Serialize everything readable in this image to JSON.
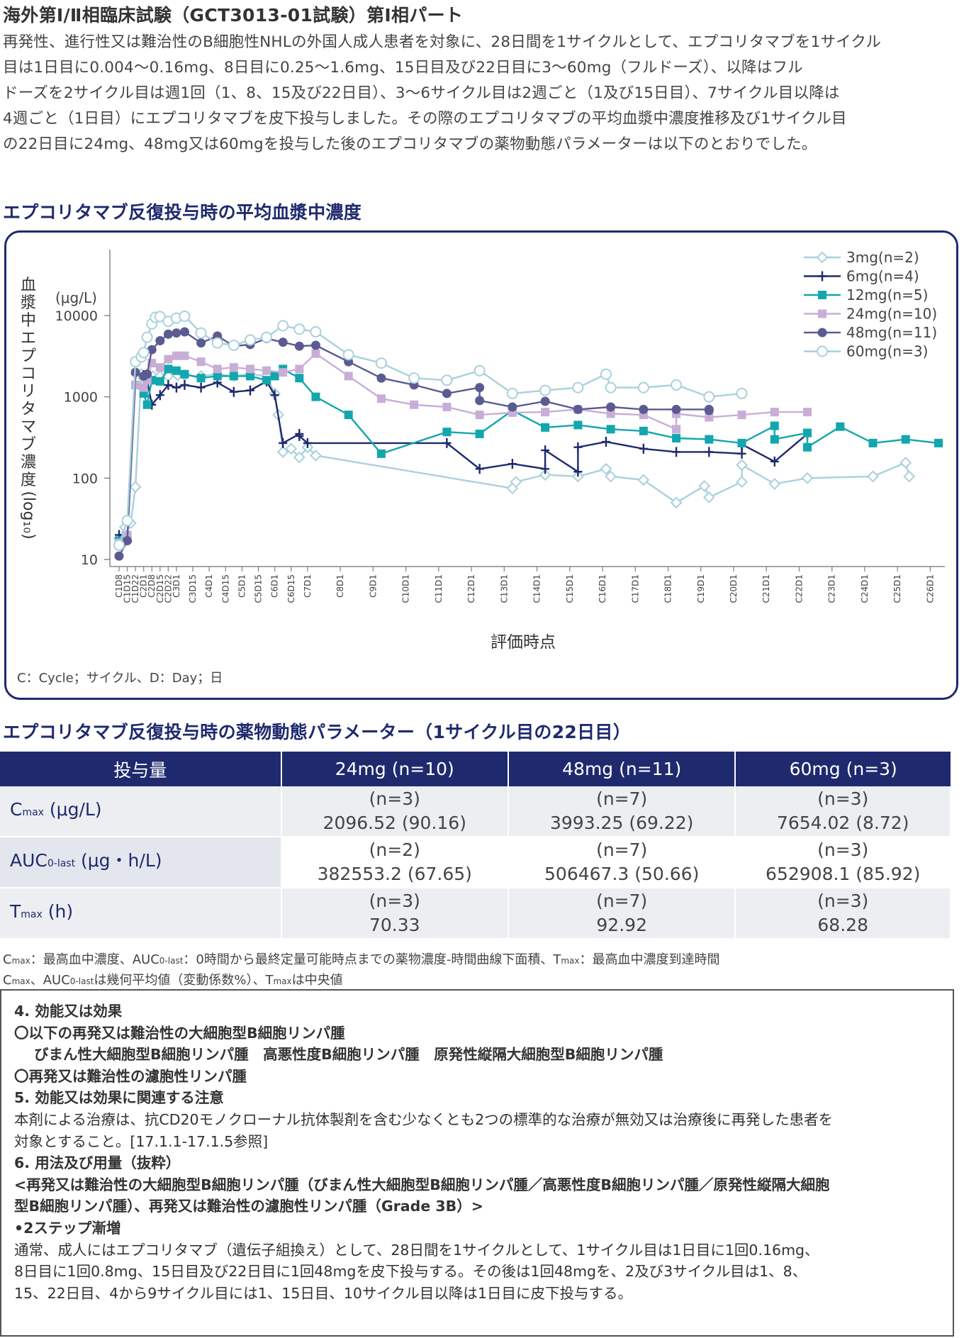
{
  "header": {
    "title": "海外第Ⅰ/Ⅱ相臨床試験（GCT3013-01試験）第Ⅰ相パート",
    "intro_lines": [
      "再発性、進行性又は難治性のB細胞性NHLの外国人成人患者を対象に、28日間を1サイクルとして、エプコリタマブを1サイクル",
      "目は1日目に0.004～0.16mg、8日目に0.25～1.6mg、15日目及び22日目に3～60mg（フルドーズ）、以降はフル",
      "ドーズを2サイクル目は週1回（1、8、15及び22日目）、3～6サイクル目は2週ごと（1及び15日目）、7サイクル目以降は",
      "4週ごと（1日目）にエプコリタマブを皮下投与しました。その際のエプコリタマブの平均血漿中濃度推移及び1サイクル目",
      "の22日目に24mg、48mg又は60mgを投与した後のエプコリタマブの薬物動態パラメーターは以下のとおりでした。"
    ]
  },
  "chart_section": {
    "title": "エプコリタマブ反復投与時の平均血漿中濃度",
    "footnote": "C：Cycle；サイクル、D：Day；日"
  },
  "chart_data": {
    "type": "line",
    "title": "エプコリタマブ反復投与時の平均血漿中濃度",
    "xlabel": "評価時点",
    "ylabel_chars": [
      "血",
      "漿",
      "中",
      "エ",
      "プ",
      "コ",
      "リ",
      "タ",
      "マ",
      "ブ",
      "濃",
      "度"
    ],
    "ylabel_suffix": "(log₁₀)",
    "y_unit": "(μg/L)",
    "y_scale": "log",
    "ylim": [
      10,
      10000
    ],
    "y_ticks": [
      10,
      100,
      1000,
      10000
    ],
    "y_tick_labels": [
      "10",
      "100",
      "1000",
      "10000"
    ],
    "x_categories": [
      "C1D8",
      "C1D15",
      "C1D22",
      "C2D1",
      "C2D8",
      "C2D15",
      "C2D22",
      "C3D1",
      "C3D15",
      "C4D1",
      "C4D15",
      "C5D1",
      "C5D15",
      "C6D1",
      "C6D15",
      "C7D1",
      "C8D1",
      "C9D1",
      "C10D1",
      "C11D1",
      "C12D1",
      "C13D1",
      "C14D1",
      "C15D1",
      "C16D1",
      "C17D1",
      "C18D1",
      "C19D1",
      "C20D1",
      "C21D1",
      "C22D1",
      "C23D1",
      "C24D1",
      "C25D1",
      "C26D1"
    ],
    "x_days": [
      7,
      14,
      21,
      28,
      35,
      42,
      49,
      56,
      70,
      84,
      98,
      112,
      126,
      140,
      154,
      168,
      196,
      224,
      252,
      280,
      308,
      336,
      364,
      392,
      420,
      448,
      476,
      504,
      532,
      560,
      588,
      616,
      644,
      672,
      700
    ],
    "legend_position": "top-right",
    "series": [
      {
        "name": "3mg(n=2)",
        "color": "#a9d1dc",
        "marker": "diamond-open",
        "points": [
          [
            0,
            18
          ],
          [
            5,
            25
          ],
          [
            10,
            28
          ],
          [
            14,
            78
          ],
          [
            19,
            1900
          ],
          [
            21,
            1700
          ],
          [
            24,
            1900
          ],
          [
            29,
            1800
          ],
          [
            35,
            1800
          ],
          [
            42,
            1800
          ],
          [
            50,
            1850
          ],
          [
            56,
            1850
          ],
          [
            70,
            1800
          ],
          [
            84,
            1900
          ],
          [
            98,
            1800
          ],
          [
            112,
            1900
          ],
          [
            126,
            1800
          ],
          [
            133,
            1100
          ],
          [
            136,
            600
          ],
          [
            140,
            210
          ],
          [
            147,
            230
          ],
          [
            154,
            180
          ],
          [
            161,
            240
          ],
          [
            168,
            190
          ],
          [
            336,
            75
          ],
          [
            339,
            90
          ],
          [
            364,
            110
          ],
          [
            392,
            105
          ],
          [
            416,
            130
          ],
          [
            420,
            105
          ],
          [
            448,
            95
          ],
          [
            476,
            50
          ],
          [
            500,
            80
          ],
          [
            504,
            58
          ],
          [
            532,
            90
          ],
          [
            532,
            145
          ],
          [
            560,
            85
          ],
          [
            588,
            100
          ],
          [
            644,
            105
          ],
          [
            672,
            155
          ],
          [
            675,
            105
          ]
        ]
      },
      {
        "name": "6mg(n=4)",
        "color": "#1f2a6e",
        "marker": "plus",
        "points": [
          [
            0,
            20
          ],
          [
            7,
            19
          ],
          [
            14,
            1900
          ],
          [
            21,
            1850
          ],
          [
            24,
            1600
          ],
          [
            28,
            800
          ],
          [
            35,
            1050
          ],
          [
            42,
            1400
          ],
          [
            49,
            1300
          ],
          [
            56,
            1400
          ],
          [
            70,
            1300
          ],
          [
            84,
            1500
          ],
          [
            98,
            1150
          ],
          [
            112,
            1200
          ],
          [
            126,
            1550
          ],
          [
            133,
            1050
          ],
          [
            140,
            270
          ],
          [
            154,
            350
          ],
          [
            154,
            330
          ],
          [
            161,
            270
          ],
          [
            280,
            270
          ],
          [
            308,
            130
          ],
          [
            336,
            150
          ],
          [
            364,
            130
          ],
          [
            364,
            220
          ],
          [
            392,
            120
          ],
          [
            392,
            240
          ],
          [
            416,
            280
          ],
          [
            448,
            230
          ],
          [
            476,
            210
          ],
          [
            504,
            210
          ],
          [
            532,
            200
          ],
          [
            532,
            260
          ],
          [
            560,
            160
          ],
          [
            588,
            350
          ]
        ]
      },
      {
        "name": "12mg(n=5)",
        "color": "#12a6ad",
        "marker": "square",
        "points": [
          [
            0,
            17
          ],
          [
            7,
            18
          ],
          [
            14,
            1400
          ],
          [
            21,
            1100
          ],
          [
            24,
            800
          ],
          [
            28,
            1600
          ],
          [
            35,
            1550
          ],
          [
            42,
            2200
          ],
          [
            49,
            2100
          ],
          [
            56,
            1900
          ],
          [
            70,
            1700
          ],
          [
            84,
            1800
          ],
          [
            98,
            1800
          ],
          [
            112,
            1800
          ],
          [
            126,
            1600
          ],
          [
            133,
            1800
          ],
          [
            140,
            2200
          ],
          [
            154,
            1700
          ],
          [
            168,
            1000
          ],
          [
            196,
            600
          ],
          [
            224,
            200
          ],
          [
            280,
            370
          ],
          [
            308,
            350
          ],
          [
            336,
            680
          ],
          [
            364,
            420
          ],
          [
            392,
            450
          ],
          [
            420,
            400
          ],
          [
            448,
            380
          ],
          [
            476,
            310
          ],
          [
            504,
            300
          ],
          [
            532,
            270
          ],
          [
            560,
            440
          ],
          [
            560,
            300
          ],
          [
            588,
            360
          ],
          [
            588,
            240
          ],
          [
            616,
            430
          ],
          [
            644,
            270
          ],
          [
            672,
            300
          ],
          [
            700,
            270
          ]
        ]
      },
      {
        "name": "24mg(n=10)",
        "color": "#c8aed6",
        "marker": "square",
        "points": [
          [
            0,
            16
          ],
          [
            7,
            20
          ],
          [
            14,
            1400
          ],
          [
            21,
            1300
          ],
          [
            24,
            1600
          ],
          [
            28,
            2600
          ],
          [
            35,
            2300
          ],
          [
            42,
            2900
          ],
          [
            49,
            3200
          ],
          [
            56,
            3200
          ],
          [
            70,
            2700
          ],
          [
            84,
            2200
          ],
          [
            98,
            2300
          ],
          [
            112,
            2200
          ],
          [
            126,
            2100
          ],
          [
            140,
            2000
          ],
          [
            154,
            2200
          ],
          [
            168,
            3400
          ],
          [
            196,
            1800
          ],
          [
            224,
            950
          ],
          [
            252,
            800
          ],
          [
            280,
            750
          ],
          [
            308,
            600
          ],
          [
            336,
            640
          ],
          [
            364,
            650
          ],
          [
            392,
            700
          ],
          [
            420,
            620
          ],
          [
            448,
            600
          ],
          [
            476,
            400
          ],
          [
            476,
            620
          ],
          [
            504,
            560
          ],
          [
            532,
            600
          ],
          [
            560,
            650
          ],
          [
            588,
            650
          ]
        ]
      },
      {
        "name": "48mg(n=11)",
        "color": "#5b5b92",
        "marker": "circle",
        "points": [
          [
            0,
            11
          ],
          [
            7,
            17
          ],
          [
            14,
            2000
          ],
          [
            21,
            1800
          ],
          [
            24,
            1900
          ],
          [
            28,
            3800
          ],
          [
            35,
            4900
          ],
          [
            42,
            5900
          ],
          [
            49,
            6100
          ],
          [
            56,
            6300
          ],
          [
            70,
            4600
          ],
          [
            84,
            5600
          ],
          [
            98,
            4200
          ],
          [
            112,
            4400
          ],
          [
            126,
            5200
          ],
          [
            140,
            4700
          ],
          [
            154,
            4200
          ],
          [
            168,
            4300
          ],
          [
            196,
            2700
          ],
          [
            224,
            1700
          ],
          [
            252,
            1400
          ],
          [
            280,
            1100
          ],
          [
            308,
            1300
          ],
          [
            308,
            900
          ],
          [
            336,
            750
          ],
          [
            364,
            880
          ],
          [
            392,
            700
          ],
          [
            420,
            750
          ],
          [
            448,
            700
          ],
          [
            476,
            700
          ],
          [
            504,
            700
          ],
          [
            504,
            680
          ]
        ]
      },
      {
        "name": "60mg(n=3)",
        "color": "#a9d1dc",
        "marker": "circle-open",
        "points": [
          [
            0,
            15
          ],
          [
            7,
            30
          ],
          [
            14,
            2700
          ],
          [
            19,
            3100
          ],
          [
            21,
            3500
          ],
          [
            24,
            5400
          ],
          [
            28,
            7900
          ],
          [
            31,
            9500
          ],
          [
            35,
            9700
          ],
          [
            42,
            8500
          ],
          [
            49,
            9300
          ],
          [
            56,
            9800
          ],
          [
            70,
            6100
          ],
          [
            84,
            4600
          ],
          [
            98,
            4300
          ],
          [
            112,
            5000
          ],
          [
            126,
            5400
          ],
          [
            140,
            7500
          ],
          [
            154,
            6800
          ],
          [
            168,
            6300
          ],
          [
            196,
            3300
          ],
          [
            224,
            2600
          ],
          [
            252,
            1700
          ],
          [
            280,
            1600
          ],
          [
            308,
            2100
          ],
          [
            336,
            1100
          ],
          [
            364,
            1200
          ],
          [
            392,
            1300
          ],
          [
            416,
            1900
          ],
          [
            420,
            1300
          ],
          [
            448,
            1300
          ],
          [
            476,
            1400
          ],
          [
            504,
            1000
          ],
          [
            532,
            1100
          ]
        ]
      }
    ]
  },
  "pk_section": {
    "title": "エプコリタマブ反復投与時の薬物動態パラメーター（1サイクル目の22日目）"
  },
  "pk_table": {
    "header": [
      "投与量",
      "24mg (n=10)",
      "48mg (n=11)",
      "60mg (n=3)"
    ],
    "rows": [
      {
        "main": "C",
        "sub": "max",
        "tail": " (μg/L)",
        "cells": [
          [
            "(n=3)",
            "2096.52 (90.16)"
          ],
          [
            "(n=7)",
            "3993.25 (69.22)"
          ],
          [
            "(n=3)",
            "7654.02 (8.72)"
          ]
        ]
      },
      {
        "main": "AUC",
        "sub": "0-last",
        "tail": " (μg・h/L)",
        "cells": [
          [
            "(n=2)",
            "382553.2 (67.65)"
          ],
          [
            "(n=7)",
            "506467.3 (50.66)"
          ],
          [
            "(n=3)",
            "652908.1 (85.92)"
          ]
        ]
      },
      {
        "main": "T",
        "sub": "max",
        "tail": " (h)",
        "cells": [
          [
            "(n=3)",
            "70.33"
          ],
          [
            "(n=7)",
            "92.92"
          ],
          [
            "(n=3)",
            "68.28"
          ]
        ]
      }
    ]
  },
  "pk_notes": {
    "line1_parts": [
      "C",
      "max",
      "：最高血中濃度、AUC",
      "0-last",
      "：0時間から最終定量可能時点までの薬物濃度-時間曲線下面積、T",
      "max",
      "：最高血中濃度到達時間"
    ],
    "line2_parts": [
      "C",
      "max",
      "、AUC",
      "0-last",
      "は幾何平均値（変動係数%）、T",
      "max",
      "は中央値"
    ]
  },
  "info_box": {
    "lines": [
      {
        "bold": true,
        "indent": false,
        "text": "4. 効能又は効果"
      },
      {
        "bold": true,
        "indent": false,
        "text": "〇以下の再発又は難治性の大細胞型B細胞リンパ腫"
      },
      {
        "bold": true,
        "indent": true,
        "text": "びまん性大細胞型B細胞リンパ腫　高悪性度B細胞リンパ腫　原発性縦隔大細胞型B細胞リンパ腫"
      },
      {
        "bold": true,
        "indent": false,
        "text": "〇再発又は難治性の濾胞性リンパ腫"
      },
      {
        "bold": true,
        "indent": false,
        "text": "5. 効能又は効果に関連する注意"
      },
      {
        "bold": false,
        "indent": false,
        "text": "本剤による治療は、抗CD20モノクローナル抗体製剤を含む少なくとも2つの標準的な治療が無効又は治療後に再発した患者を"
      },
      {
        "bold": false,
        "indent": false,
        "text": "対象とすること。[17.1.1-17.1.5参照]"
      },
      {
        "bold": true,
        "indent": false,
        "text": "6. 用法及び用量（抜粋）"
      },
      {
        "bold": true,
        "indent": false,
        "text": "<再発又は難治性の大細胞型B細胞リンパ腫（びまん性大細胞型B細胞リンパ腫／高悪性度B細胞リンパ腫／原発性縦隔大細胞"
      },
      {
        "bold": true,
        "indent": false,
        "text": "型B細胞リンパ腫）、再発又は難治性の濾胞性リンパ腫（Grade 3B）>"
      },
      {
        "bold": true,
        "indent": false,
        "text": "•2ステップ漸増"
      },
      {
        "bold": false,
        "indent": false,
        "text": "通常、成人にはエプコリタマブ（遺伝子組換え）として、28日間を1サイクルとして、1サイクル目は1日目に1回0.16mg、"
      },
      {
        "bold": false,
        "indent": false,
        "text": "8日目に1回0.8mg、15日目及び22日目に1回48mgを皮下投与する。その後は1回48mgを、2及び3サイクル目は1、8、"
      },
      {
        "bold": false,
        "indent": false,
        "text": "15、22日目、4から9サイクル目には1、15日目、10サイクル目以降は1日目に皮下投与する。"
      }
    ]
  }
}
